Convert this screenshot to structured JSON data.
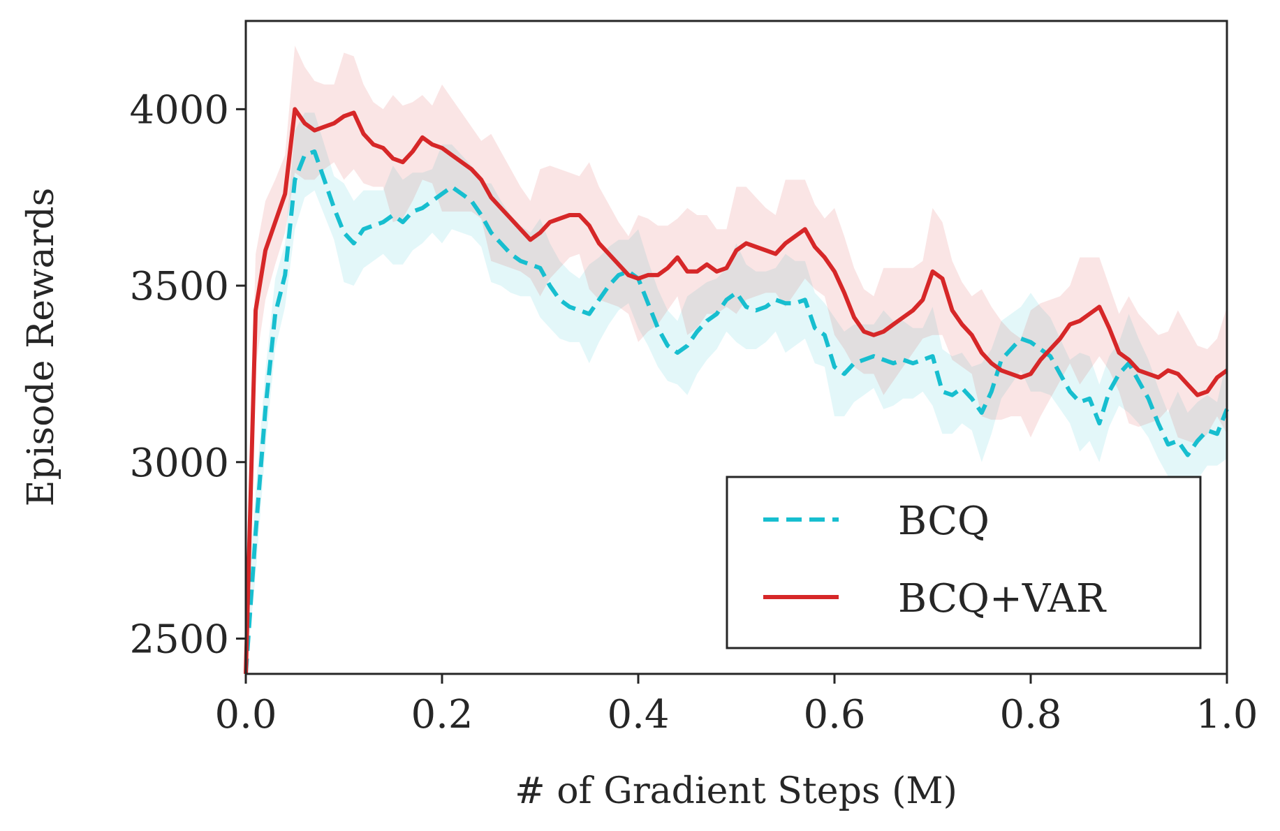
{
  "chart_data": {
    "type": "line",
    "title": "",
    "xlabel": "# of Gradient Steps (M)",
    "ylabel": "Episode Rewards",
    "xlim": [
      0.0,
      1.0
    ],
    "ylim": [
      2400,
      4250
    ],
    "xticks": [
      0.0,
      0.2,
      0.4,
      0.6,
      0.8,
      1.0
    ],
    "xtick_labels": [
      "0.0",
      "0.2",
      "0.4",
      "0.6",
      "0.8",
      "1.0"
    ],
    "yticks": [
      2500,
      3000,
      3500,
      4000
    ],
    "ytick_labels": [
      "2500",
      "3000",
      "3500",
      "4000"
    ],
    "grid": false,
    "legend_position": "lower-right",
    "series": [
      {
        "name": "BCQ",
        "color": "#17becf",
        "style": "dashed",
        "x": [
          0.0,
          0.01,
          0.02,
          0.03,
          0.04,
          0.05,
          0.06,
          0.07,
          0.08,
          0.09,
          0.1,
          0.11,
          0.12,
          0.13,
          0.14,
          0.15,
          0.16,
          0.17,
          0.18,
          0.19,
          0.2,
          0.21,
          0.22,
          0.23,
          0.24,
          0.25,
          0.26,
          0.27,
          0.28,
          0.29,
          0.3,
          0.31,
          0.32,
          0.33,
          0.34,
          0.35,
          0.36,
          0.37,
          0.38,
          0.39,
          0.4,
          0.41,
          0.42,
          0.43,
          0.44,
          0.45,
          0.46,
          0.47,
          0.48,
          0.49,
          0.5,
          0.51,
          0.52,
          0.53,
          0.54,
          0.55,
          0.56,
          0.57,
          0.58,
          0.59,
          0.6,
          0.61,
          0.62,
          0.63,
          0.64,
          0.65,
          0.66,
          0.67,
          0.68,
          0.69,
          0.7,
          0.71,
          0.72,
          0.73,
          0.74,
          0.75,
          0.76,
          0.77,
          0.78,
          0.79,
          0.8,
          0.81,
          0.82,
          0.83,
          0.84,
          0.85,
          0.86,
          0.87,
          0.88,
          0.89,
          0.9,
          0.91,
          0.92,
          0.93,
          0.94,
          0.95,
          0.96,
          0.97,
          0.98,
          0.99,
          1.0
        ],
        "y": [
          2400,
          2800,
          3150,
          3420,
          3530,
          3800,
          3870,
          3880,
          3800,
          3720,
          3650,
          3620,
          3660,
          3670,
          3680,
          3700,
          3680,
          3710,
          3720,
          3740,
          3760,
          3780,
          3760,
          3740,
          3700,
          3650,
          3620,
          3590,
          3570,
          3560,
          3550,
          3500,
          3460,
          3440,
          3430,
          3420,
          3460,
          3500,
          3530,
          3540,
          3520,
          3450,
          3380,
          3330,
          3310,
          3330,
          3370,
          3400,
          3420,
          3460,
          3480,
          3440,
          3430,
          3440,
          3460,
          3450,
          3450,
          3460,
          3380,
          3360,
          3270,
          3250,
          3280,
          3290,
          3300,
          3290,
          3280,
          3290,
          3280,
          3290,
          3300,
          3200,
          3190,
          3210,
          3180,
          3140,
          3200,
          3290,
          3320,
          3350,
          3340,
          3320,
          3300,
          3250,
          3200,
          3170,
          3180,
          3110,
          3200,
          3250,
          3280,
          3230,
          3180,
          3110,
          3050,
          3060,
          3020,
          3060,
          3090,
          3080,
          3150
        ]
      },
      {
        "name": "BCQ+VAR",
        "color": "#d62728",
        "style": "solid",
        "x": [
          0.0,
          0.01,
          0.02,
          0.03,
          0.04,
          0.05,
          0.06,
          0.07,
          0.08,
          0.09,
          0.1,
          0.11,
          0.12,
          0.13,
          0.14,
          0.15,
          0.16,
          0.17,
          0.18,
          0.19,
          0.2,
          0.21,
          0.22,
          0.23,
          0.24,
          0.25,
          0.26,
          0.27,
          0.28,
          0.29,
          0.3,
          0.31,
          0.32,
          0.33,
          0.34,
          0.35,
          0.36,
          0.37,
          0.38,
          0.39,
          0.4,
          0.41,
          0.42,
          0.43,
          0.44,
          0.45,
          0.46,
          0.47,
          0.48,
          0.49,
          0.5,
          0.51,
          0.52,
          0.53,
          0.54,
          0.55,
          0.56,
          0.57,
          0.58,
          0.59,
          0.6,
          0.61,
          0.62,
          0.63,
          0.64,
          0.65,
          0.66,
          0.67,
          0.68,
          0.69,
          0.7,
          0.71,
          0.72,
          0.73,
          0.74,
          0.75,
          0.76,
          0.77,
          0.78,
          0.79,
          0.8,
          0.81,
          0.82,
          0.83,
          0.84,
          0.85,
          0.86,
          0.87,
          0.88,
          0.89,
          0.9,
          0.91,
          0.92,
          0.93,
          0.94,
          0.95,
          0.96,
          0.97,
          0.98,
          0.99,
          1.0
        ],
        "y": [
          2400,
          3430,
          3600,
          3680,
          3760,
          4000,
          3960,
          3940,
          3950,
          3960,
          3980,
          3990,
          3930,
          3900,
          3890,
          3860,
          3850,
          3880,
          3920,
          3900,
          3890,
          3870,
          3850,
          3830,
          3800,
          3750,
          3720,
          3690,
          3660,
          3630,
          3650,
          3680,
          3690,
          3700,
          3700,
          3670,
          3620,
          3590,
          3560,
          3530,
          3520,
          3530,
          3530,
          3550,
          3580,
          3540,
          3540,
          3560,
          3540,
          3550,
          3600,
          3620,
          3610,
          3600,
          3590,
          3620,
          3640,
          3660,
          3610,
          3580,
          3540,
          3480,
          3410,
          3370,
          3360,
          3370,
          3390,
          3410,
          3430,
          3460,
          3540,
          3520,
          3430,
          3390,
          3360,
          3310,
          3280,
          3260,
          3250,
          3240,
          3250,
          3290,
          3320,
          3350,
          3390,
          3400,
          3420,
          3440,
          3380,
          3310,
          3290,
          3260,
          3250,
          3240,
          3260,
          3250,
          3220,
          3190,
          3200,
          3240,
          3260
        ]
      }
    ]
  },
  "legend": {
    "items": [
      "BCQ",
      "BCQ+VAR"
    ]
  }
}
